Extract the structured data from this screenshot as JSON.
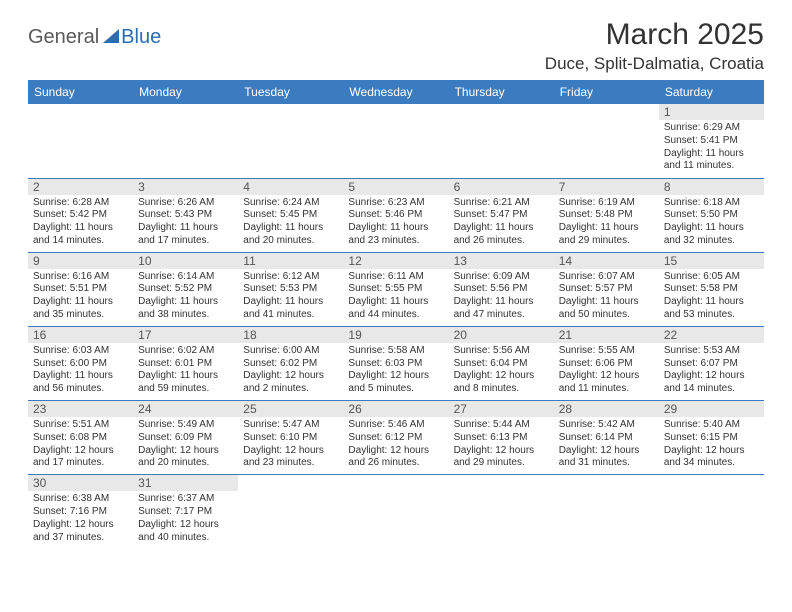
{
  "logo": {
    "text_general": "General",
    "text_blue": "Blue"
  },
  "title": "March 2025",
  "location": "Duce, Split-Dalmatia, Croatia",
  "columns": [
    "Sunday",
    "Monday",
    "Tuesday",
    "Wednesday",
    "Thursday",
    "Friday",
    "Saturday"
  ],
  "style": {
    "header_bg": "#3b7bbf",
    "header_fg": "#ffffff",
    "daynum_bg": "#e8e8e8",
    "border_color": "#3b7bbf",
    "title_fontsize": 30,
    "location_fontsize": 17,
    "th_fontsize": 12,
    "day_fontsize": 10
  },
  "weeks": [
    [
      null,
      null,
      null,
      null,
      null,
      null,
      {
        "n": "1",
        "sr": "Sunrise: 6:29 AM",
        "ss": "Sunset: 5:41 PM",
        "dl": "Daylight: 11 hours and 11 minutes."
      }
    ],
    [
      {
        "n": "2",
        "sr": "Sunrise: 6:28 AM",
        "ss": "Sunset: 5:42 PM",
        "dl": "Daylight: 11 hours and 14 minutes."
      },
      {
        "n": "3",
        "sr": "Sunrise: 6:26 AM",
        "ss": "Sunset: 5:43 PM",
        "dl": "Daylight: 11 hours and 17 minutes."
      },
      {
        "n": "4",
        "sr": "Sunrise: 6:24 AM",
        "ss": "Sunset: 5:45 PM",
        "dl": "Daylight: 11 hours and 20 minutes."
      },
      {
        "n": "5",
        "sr": "Sunrise: 6:23 AM",
        "ss": "Sunset: 5:46 PM",
        "dl": "Daylight: 11 hours and 23 minutes."
      },
      {
        "n": "6",
        "sr": "Sunrise: 6:21 AM",
        "ss": "Sunset: 5:47 PM",
        "dl": "Daylight: 11 hours and 26 minutes."
      },
      {
        "n": "7",
        "sr": "Sunrise: 6:19 AM",
        "ss": "Sunset: 5:48 PM",
        "dl": "Daylight: 11 hours and 29 minutes."
      },
      {
        "n": "8",
        "sr": "Sunrise: 6:18 AM",
        "ss": "Sunset: 5:50 PM",
        "dl": "Daylight: 11 hours and 32 minutes."
      }
    ],
    [
      {
        "n": "9",
        "sr": "Sunrise: 6:16 AM",
        "ss": "Sunset: 5:51 PM",
        "dl": "Daylight: 11 hours and 35 minutes."
      },
      {
        "n": "10",
        "sr": "Sunrise: 6:14 AM",
        "ss": "Sunset: 5:52 PM",
        "dl": "Daylight: 11 hours and 38 minutes."
      },
      {
        "n": "11",
        "sr": "Sunrise: 6:12 AM",
        "ss": "Sunset: 5:53 PM",
        "dl": "Daylight: 11 hours and 41 minutes."
      },
      {
        "n": "12",
        "sr": "Sunrise: 6:11 AM",
        "ss": "Sunset: 5:55 PM",
        "dl": "Daylight: 11 hours and 44 minutes."
      },
      {
        "n": "13",
        "sr": "Sunrise: 6:09 AM",
        "ss": "Sunset: 5:56 PM",
        "dl": "Daylight: 11 hours and 47 minutes."
      },
      {
        "n": "14",
        "sr": "Sunrise: 6:07 AM",
        "ss": "Sunset: 5:57 PM",
        "dl": "Daylight: 11 hours and 50 minutes."
      },
      {
        "n": "15",
        "sr": "Sunrise: 6:05 AM",
        "ss": "Sunset: 5:58 PM",
        "dl": "Daylight: 11 hours and 53 minutes."
      }
    ],
    [
      {
        "n": "16",
        "sr": "Sunrise: 6:03 AM",
        "ss": "Sunset: 6:00 PM",
        "dl": "Daylight: 11 hours and 56 minutes."
      },
      {
        "n": "17",
        "sr": "Sunrise: 6:02 AM",
        "ss": "Sunset: 6:01 PM",
        "dl": "Daylight: 11 hours and 59 minutes."
      },
      {
        "n": "18",
        "sr": "Sunrise: 6:00 AM",
        "ss": "Sunset: 6:02 PM",
        "dl": "Daylight: 12 hours and 2 minutes."
      },
      {
        "n": "19",
        "sr": "Sunrise: 5:58 AM",
        "ss": "Sunset: 6:03 PM",
        "dl": "Daylight: 12 hours and 5 minutes."
      },
      {
        "n": "20",
        "sr": "Sunrise: 5:56 AM",
        "ss": "Sunset: 6:04 PM",
        "dl": "Daylight: 12 hours and 8 minutes."
      },
      {
        "n": "21",
        "sr": "Sunrise: 5:55 AM",
        "ss": "Sunset: 6:06 PM",
        "dl": "Daylight: 12 hours and 11 minutes."
      },
      {
        "n": "22",
        "sr": "Sunrise: 5:53 AM",
        "ss": "Sunset: 6:07 PM",
        "dl": "Daylight: 12 hours and 14 minutes."
      }
    ],
    [
      {
        "n": "23",
        "sr": "Sunrise: 5:51 AM",
        "ss": "Sunset: 6:08 PM",
        "dl": "Daylight: 12 hours and 17 minutes."
      },
      {
        "n": "24",
        "sr": "Sunrise: 5:49 AM",
        "ss": "Sunset: 6:09 PM",
        "dl": "Daylight: 12 hours and 20 minutes."
      },
      {
        "n": "25",
        "sr": "Sunrise: 5:47 AM",
        "ss": "Sunset: 6:10 PM",
        "dl": "Daylight: 12 hours and 23 minutes."
      },
      {
        "n": "26",
        "sr": "Sunrise: 5:46 AM",
        "ss": "Sunset: 6:12 PM",
        "dl": "Daylight: 12 hours and 26 minutes."
      },
      {
        "n": "27",
        "sr": "Sunrise: 5:44 AM",
        "ss": "Sunset: 6:13 PM",
        "dl": "Daylight: 12 hours and 29 minutes."
      },
      {
        "n": "28",
        "sr": "Sunrise: 5:42 AM",
        "ss": "Sunset: 6:14 PM",
        "dl": "Daylight: 12 hours and 31 minutes."
      },
      {
        "n": "29",
        "sr": "Sunrise: 5:40 AM",
        "ss": "Sunset: 6:15 PM",
        "dl": "Daylight: 12 hours and 34 minutes."
      }
    ],
    [
      {
        "n": "30",
        "sr": "Sunrise: 6:38 AM",
        "ss": "Sunset: 7:16 PM",
        "dl": "Daylight: 12 hours and 37 minutes."
      },
      {
        "n": "31",
        "sr": "Sunrise: 6:37 AM",
        "ss": "Sunset: 7:17 PM",
        "dl": "Daylight: 12 hours and 40 minutes."
      },
      null,
      null,
      null,
      null,
      null
    ]
  ]
}
